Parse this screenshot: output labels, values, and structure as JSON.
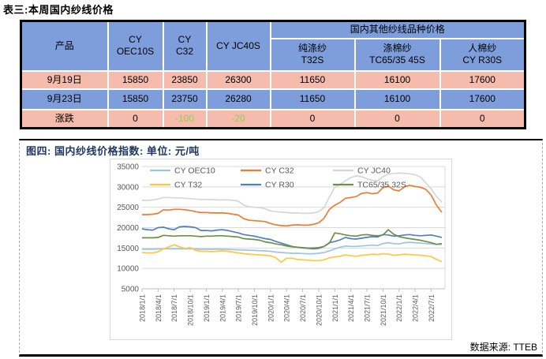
{
  "page": {
    "table_title": "表三:本周国内纱线价格"
  },
  "table": {
    "product_header": "产品",
    "main_columns": [
      {
        "lines": [
          "CY",
          "OEC10S"
        ]
      },
      {
        "lines": [
          "CY",
          "C32"
        ]
      },
      {
        "lines": [
          "CY JC40S"
        ]
      }
    ],
    "group_header": "国内其他纱线品种价格",
    "sub_columns": [
      {
        "lines": [
          "纯涤纱",
          "T32S"
        ]
      },
      {
        "lines": [
          "涤棉纱",
          "TC65/35 45S"
        ]
      },
      {
        "lines": [
          "人棉纱",
          "CY R30S"
        ]
      }
    ],
    "rows": [
      {
        "label": "9月19日",
        "bg": "pink",
        "values": [
          "15850",
          "23850",
          "26300",
          "11650",
          "16100",
          "17600"
        ],
        "green_indices": []
      },
      {
        "label": "9月23日",
        "bg": "blue",
        "values": [
          "15850",
          "23750",
          "26280",
          "11650",
          "16100",
          "17600"
        ],
        "green_indices": []
      },
      {
        "label": "涨跌",
        "bg": "pink",
        "values": [
          "0",
          "-100",
          "-20",
          "0",
          "0",
          "0"
        ],
        "green_indices": [
          1,
          2
        ]
      }
    ],
    "colors": {
      "header_bg": "#7D9EDB",
      "row_pink": "#F5BBAC",
      "row_blue": "#7D9EDB",
      "change_green": "#92D050"
    }
  },
  "figure": {
    "title": "图四: 国内纱线价格指数: 单位: 元/吨",
    "title_color": "#1F3864",
    "source": "数据来源: TTEB"
  },
  "chart_data": {
    "type": "line",
    "title": "国内纱线价格指数",
    "unit": "元/吨",
    "grid": true,
    "legend_position": "top",
    "ylim": [
      5000,
      35000
    ],
    "y_ticks": [
      35000,
      30000,
      25000,
      20000,
      15000,
      10000,
      5000
    ],
    "x_frequency": "monthly",
    "x_range": [
      "2018/1",
      "2022/9"
    ],
    "x_tick_labels": [
      "2018/1/1",
      "2018/4/1",
      "2018/7/1",
      "2018/10/1",
      "2019/1/1",
      "2019/4/1",
      "2019/7/1",
      "2019/10/1",
      "2020/1/1",
      "2020/4/1",
      "2020/7/1",
      "2020/10/1",
      "2021/1/1",
      "2021/4/1",
      "2021/7/1",
      "2021/10/1",
      "2022/1/1",
      "2022/4/1",
      "2022/7/1"
    ],
    "series": [
      {
        "name": "CY OEC10",
        "color": "#9DC3E6",
        "values": [
          14700,
          14700,
          14700,
          14750,
          14800,
          14800,
          14800,
          14800,
          14800,
          14800,
          14750,
          14700,
          14700,
          14700,
          14700,
          14700,
          14650,
          14600,
          14550,
          14500,
          14450,
          14400,
          14350,
          14300,
          14200,
          14000,
          13900,
          13800,
          13700,
          13700,
          13650,
          13600,
          13600,
          13700,
          13900,
          14300,
          14800,
          15200,
          15500,
          15400,
          15400,
          15500,
          15600,
          15700,
          15600,
          16100,
          16300,
          16100,
          16000,
          16300,
          16400,
          16300,
          16200,
          16100,
          16000,
          15900,
          15850
        ]
      },
      {
        "name": "CY C32",
        "color": "#ED7D31",
        "values": [
          23200,
          23200,
          23300,
          23500,
          24400,
          24300,
          24500,
          24500,
          24400,
          24200,
          23900,
          23700,
          23700,
          23600,
          23600,
          23600,
          23500,
          23300,
          23100,
          22200,
          21800,
          21700,
          21600,
          21500,
          21000,
          20700,
          20500,
          20400,
          20600,
          20700,
          20600,
          20600,
          20800,
          21200,
          22300,
          24500,
          25500,
          26200,
          27200,
          27400,
          27600,
          28400,
          28600,
          28300,
          28500,
          29800,
          30200,
          29300,
          29000,
          30000,
          30400,
          30100,
          29900,
          29400,
          28000,
          25500,
          23750
        ]
      },
      {
        "name": "CY JC40",
        "color": "#D6D6D6",
        "values": [
          26700,
          26700,
          26800,
          27000,
          27400,
          27400,
          27300,
          27300,
          27200,
          27100,
          27000,
          26900,
          26900,
          26900,
          26800,
          26800,
          26800,
          26700,
          26500,
          25500,
          25100,
          25000,
          24900,
          24600,
          24100,
          23900,
          23800,
          23700,
          23600,
          23600,
          23500,
          23500,
          23600,
          23900,
          24900,
          27500,
          29900,
          30600,
          31500,
          32300,
          32700,
          32500,
          32000,
          31600,
          31500,
          32500,
          33100,
          33300,
          33400,
          33300,
          33200,
          33000,
          32400,
          31000,
          29500,
          27600,
          26280
        ]
      },
      {
        "name": "CY T32",
        "color": "#FFC83D",
        "values": [
          13900,
          13800,
          13800,
          14100,
          14800,
          15300,
          15800,
          15300,
          14900,
          15100,
          14400,
          14200,
          14200,
          14100,
          14200,
          14300,
          14200,
          14000,
          13800,
          13600,
          13500,
          13400,
          13300,
          13200,
          13100,
          12600,
          11500,
          12500,
          12500,
          12200,
          12100,
          12000,
          11900,
          11900,
          12100,
          12600,
          12800,
          13000,
          13300,
          13100,
          13000,
          13200,
          13300,
          13500,
          13400,
          13600,
          13500,
          13200,
          13300,
          13500,
          13400,
          13300,
          13200,
          13100,
          12900,
          12200,
          11650
        ]
      },
      {
        "name": "CY R30",
        "color": "#4E81BD",
        "values": [
          19700,
          19500,
          19400,
          20000,
          20100,
          19700,
          19500,
          20200,
          20300,
          20200,
          20000,
          19300,
          19300,
          19200,
          19400,
          19500,
          19300,
          19000,
          18700,
          18300,
          18100,
          17900,
          17600,
          17300,
          17100,
          16600,
          16200,
          15800,
          15400,
          15200,
          15000,
          14900,
          14800,
          14900,
          15400,
          16300,
          16600,
          17000,
          17600,
          17300,
          17200,
          17400,
          17600,
          17800,
          17700,
          18300,
          18200,
          17900,
          18000,
          18200,
          18300,
          18100,
          18000,
          18100,
          18200,
          17900,
          17600
        ]
      },
      {
        "name": "TC65/35 32S",
        "color": "#6F8F46",
        "values": [
          17500,
          17500,
          17500,
          17600,
          18100,
          18000,
          17900,
          18000,
          18000,
          18000,
          17900,
          17800,
          17900,
          17900,
          18000,
          18000,
          17900,
          17800,
          17700,
          17300,
          17200,
          17100,
          16900,
          16500,
          16300,
          16000,
          15800,
          15500,
          15300,
          15200,
          15100,
          15000,
          15000,
          15100,
          15400,
          16200,
          18700,
          18500,
          18200,
          18000,
          17900,
          18200,
          18300,
          18100,
          18000,
          18200,
          19500,
          18400,
          17800,
          17500,
          17300,
          17100,
          16900,
          16600,
          16300,
          15900,
          16100
        ]
      }
    ]
  }
}
